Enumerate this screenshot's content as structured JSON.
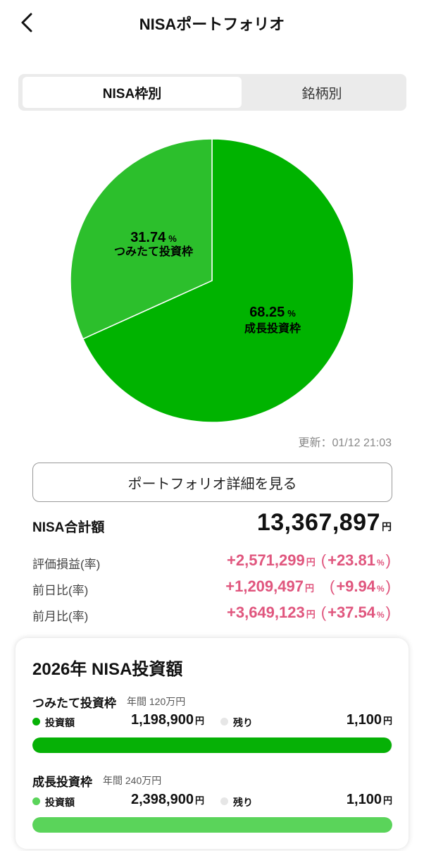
{
  "header": {
    "title": "NISAポートフォリオ",
    "back_icon": "chevron-left-icon"
  },
  "tabs": [
    {
      "label": "NISA枠別",
      "active": true
    },
    {
      "label": "銘柄別",
      "active": false
    }
  ],
  "colors": {
    "growth": "#00b300",
    "tsumitate": "#2cbf2c",
    "growth_bar": "#06b106",
    "tsumitate_bar": "#5ad45a",
    "pink": "#e0567e",
    "remaining": "#e6e6e6"
  },
  "chart_data": {
    "type": "pie",
    "slices": [
      {
        "label": "成長投資枠",
        "value": 68.25,
        "unit": "%"
      },
      {
        "label": "つみたて投資枠",
        "value": 31.74,
        "unit": "%"
      }
    ]
  },
  "pie_labels": {
    "growth_pct": "68.25",
    "growth_name": "成長投資枠",
    "tsumitate_pct": "31.74",
    "tsumitate_name": "つみたて投資枠",
    "pct_unit": "%"
  },
  "updated": "更新：01/12 21:03",
  "detail_button": "ポートフォリオ詳細を見る",
  "total": {
    "label": "NISA合計額",
    "value": "13,367,897",
    "unit": "円"
  },
  "stats": [
    {
      "label": "評価損益(率)",
      "amount": "+2,571,299",
      "unit": "円",
      "pct": "+23.81",
      "pct_unit": "%"
    },
    {
      "label": "前日比(率)",
      "amount": "+1,209,497",
      "unit": "円",
      "pct": "+9.94",
      "pct_unit": "%"
    },
    {
      "label": "前月比(率)",
      "amount": "+3,649,123",
      "unit": "円",
      "pct": "+37.54",
      "pct_unit": "%"
    }
  ],
  "card": {
    "title": "2026年 NISA投資額",
    "tsumitate": {
      "label": "つみたて投資枠",
      "limit": "年間 120万円",
      "invested_label": "投資額",
      "invested": "1,198,900",
      "remaining_label": "残り",
      "remaining": "1,100",
      "unit": "円",
      "progress": 0.999
    },
    "growth": {
      "label": "成長投資枠",
      "limit": "年間 240万円",
      "invested_label": "投資額",
      "invested": "2,398,900",
      "remaining_label": "残り",
      "remaining": "1,100",
      "unit": "円",
      "progress": 0.9995
    }
  }
}
